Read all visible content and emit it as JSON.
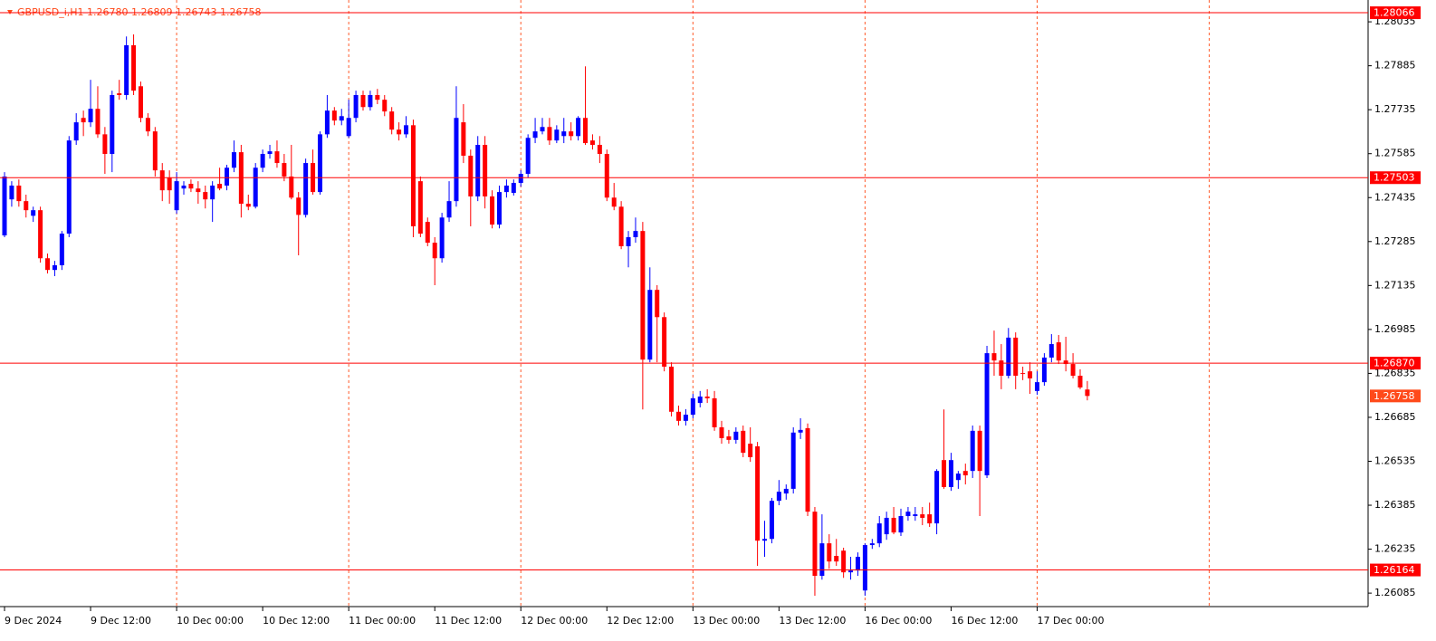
{
  "chart_data": {
    "type": "candlestick",
    "title": "GBPUSD_i,H1  1.26780 1.26809 1.26743 1.26758",
    "categories": [
      "9 Dec 2024",
      null,
      null,
      null,
      null,
      null,
      null,
      null,
      null,
      null,
      null,
      null,
      "9 Dec 12:00",
      null,
      null,
      null,
      null,
      null,
      null,
      null,
      null,
      null,
      null,
      null,
      "10 Dec 00:00",
      null,
      null,
      null,
      null,
      null,
      null,
      null,
      null,
      null,
      null,
      null,
      "10 Dec 12:00",
      null,
      null,
      null,
      null,
      null,
      null,
      null,
      null,
      null,
      null,
      null,
      "11 Dec 00:00",
      null,
      null,
      null,
      null,
      null,
      null,
      null,
      null,
      null,
      null,
      null,
      "11 Dec 12:00",
      null,
      null,
      null,
      null,
      null,
      null,
      null,
      null,
      null,
      null,
      null,
      "12 Dec 00:00",
      null,
      null,
      null,
      null,
      null,
      null,
      null,
      null,
      null,
      null,
      null,
      "12 Dec 12:00",
      null,
      null,
      null,
      null,
      null,
      null,
      null,
      null,
      null,
      null,
      null,
      "13 Dec 00:00",
      null,
      null,
      null,
      null,
      null,
      null,
      null,
      null,
      null,
      null,
      null,
      "13 Dec 12:00",
      null,
      null,
      null,
      null,
      null,
      null,
      null,
      null,
      null,
      null,
      null,
      "16 Dec 00:00",
      null,
      null,
      null,
      null,
      null,
      null,
      null,
      null,
      null,
      null,
      null,
      "16 Dec 12:00",
      null,
      null,
      null,
      null,
      null,
      null,
      null,
      null,
      null,
      null,
      null,
      "17 Dec 00:00",
      null,
      null,
      null,
      null,
      null,
      null,
      null
    ],
    "open": [
      1.27306,
      1.27429,
      1.27476,
      1.27423,
      1.27373,
      1.27392,
      1.27228,
      1.27188,
      1.27204,
      1.27312,
      1.2763,
      1.27707,
      1.27692,
      1.27738,
      1.27651,
      1.27584,
      1.27791,
      1.27785,
      1.27955,
      1.27815,
      1.27707,
      1.27661,
      1.27528,
      1.27503,
      1.27392,
      1.27466,
      1.27482,
      1.27466,
      1.27454,
      1.27429,
      1.27482,
      1.27476,
      1.27537,
      1.2759,
      1.27414,
      1.27404,
      1.27537,
      1.27584,
      1.27593,
      1.27553,
      1.27507,
      1.27435,
      1.27376,
      1.27553,
      1.27454,
      1.27651,
      1.27732,
      1.27698,
      1.27645,
      1.27707,
      1.27785,
      1.27744,
      1.27785,
      1.27769,
      1.27729,
      1.27667,
      1.27651,
      1.27682,
      1.27491,
      1.27352,
      1.27281,
      1.27228,
      1.27367,
      1.27423,
      1.27692,
      1.27578,
      1.27439,
      1.27615,
      1.27439,
      1.27343,
      1.27454,
      1.27451,
      1.27485,
      1.27516,
      1.27639,
      1.27661,
      1.27676,
      1.2763,
      1.27645,
      1.27661,
      1.27645,
      1.27707,
      1.2763,
      1.27615,
      1.27584,
      1.27435,
      1.27404,
      1.27269,
      1.273,
      1.27321,
      1.26882,
      1.2712,
      1.27027,
      1.26858,
      1.26704,
      1.26673,
      1.26694,
      1.26734,
      1.26756,
      1.2675,
      1.26651,
      1.2662,
      1.26608,
      1.26639,
      1.26595,
      1.26586,
      1.26264,
      1.2627,
      1.264,
      1.26425,
      1.26441,
      1.26633,
      1.26648,
      1.26363,
      1.26144,
      1.26255,
      1.26212,
      1.2623,
      1.26156,
      1.26162,
      1.26094,
      1.26249,
      1.26255,
      1.26286,
      1.26342,
      1.26292,
      1.26348,
      1.26348,
      1.26354,
      1.26354,
      1.26323,
      1.26539,
      1.26447,
      1.26471,
      1.26502,
      1.26502,
      1.26639,
      1.26487,
      1.26904,
      1.26879,
      1.26827,
      1.26957,
      1.26836,
      1.26842,
      1.26775,
      1.26805,
      1.26889,
      1.26941,
      1.26879,
      1.26867,
      1.26827,
      1.2678
    ],
    "high": [
      1.27522,
      1.27491,
      1.27497,
      1.27445,
      1.27404,
      1.27404,
      1.27244,
      1.27219,
      1.27321,
      1.27645,
      1.27723,
      1.27732,
      1.27837,
      1.27815,
      1.27676,
      1.278,
      1.27837,
      1.27985,
      1.27992,
      1.27831,
      1.27723,
      1.27676,
      1.27553,
      1.27528,
      1.27522,
      1.27491,
      1.27497,
      1.27491,
      1.27476,
      1.27491,
      1.27537,
      1.27547,
      1.2763,
      1.27615,
      1.27445,
      1.27553,
      1.27599,
      1.27615,
      1.2763,
      1.27584,
      1.27615,
      1.27454,
      1.27568,
      1.27599,
      1.27661,
      1.27785,
      1.27744,
      1.27738,
      1.27769,
      1.278,
      1.278,
      1.278,
      1.27806,
      1.27785,
      1.27744,
      1.27692,
      1.27713,
      1.27701,
      1.27507,
      1.27367,
      1.273,
      1.27383,
      1.27491,
      1.27815,
      1.27754,
      1.27599,
      1.27645,
      1.27645,
      1.2746,
      1.27476,
      1.27497,
      1.27497,
      1.27528,
      1.27651,
      1.27707,
      1.27707,
      1.27707,
      1.27682,
      1.27707,
      1.27692,
      1.27713,
      1.27883,
      1.27651,
      1.27645,
      1.27599,
      1.27485,
      1.27423,
      1.27321,
      1.27367,
      1.27352,
      1.27197,
      1.27136,
      1.27043,
      1.26873,
      1.26725,
      1.26713,
      1.26765,
      1.26775,
      1.26781,
      1.26775,
      1.26673,
      1.26642,
      1.26651,
      1.26657,
      1.26651,
      1.26601,
      1.26332,
      1.2641,
      1.26471,
      1.26456,
      1.26651,
      1.26682,
      1.26664,
      1.26379,
      1.26354,
      1.26286,
      1.2627,
      1.2624,
      1.26209,
      1.26224,
      1.26255,
      1.2627,
      1.26348,
      1.26363,
      1.26379,
      1.26373,
      1.26379,
      1.26379,
      1.26379,
      1.26394,
      1.26508,
      1.26712,
      1.26564,
      1.26502,
      1.26527,
      1.26657,
      1.26657,
      1.26929,
      1.26981,
      1.26935,
      1.2699,
      1.26975,
      1.26858,
      1.26873,
      1.26842,
      1.26904,
      1.26969,
      1.26966,
      1.2696,
      1.26904,
      1.26849,
      1.26809
    ],
    "low": [
      1.273,
      1.27404,
      1.27404,
      1.27367,
      1.27352,
      1.27213,
      1.27176,
      1.27167,
      1.27188,
      1.273,
      1.27615,
      1.27645,
      1.27676,
      1.27639,
      1.27516,
      1.27522,
      1.27769,
      1.27769,
      1.27785,
      1.27692,
      1.27645,
      1.27507,
      1.27423,
      1.27414,
      1.2738,
      1.27445,
      1.27454,
      1.27414,
      1.27398,
      1.27352,
      1.2746,
      1.2746,
      1.27522,
      1.27367,
      1.27392,
      1.27398,
      1.27522,
      1.27568,
      1.27537,
      1.27491,
      1.27429,
      1.27238,
      1.27367,
      1.27445,
      1.27445,
      1.27639,
      1.27682,
      1.27682,
      1.27639,
      1.27692,
      1.27732,
      1.27732,
      1.27754,
      1.27713,
      1.27651,
      1.2763,
      1.27639,
      1.273,
      1.273,
      1.27269,
      1.27136,
      1.27213,
      1.27352,
      1.27404,
      1.27553,
      1.27337,
      1.27423,
      1.27398,
      1.2733,
      1.2733,
      1.27435,
      1.27442,
      1.27472,
      1.27503,
      1.27621,
      1.27651,
      1.27615,
      1.27621,
      1.27621,
      1.2763,
      1.2763,
      1.27615,
      1.27599,
      1.27553,
      1.27423,
      1.27392,
      1.27259,
      1.27197,
      1.27281,
      1.26712,
      1.26873,
      1.26873,
      1.26842,
      1.26688,
      1.26657,
      1.26657,
      1.26682,
      1.26719,
      1.26734,
      1.26639,
      1.26595,
      1.26595,
      1.26595,
      1.26549,
      1.26533,
      1.26178,
      1.26209,
      1.26255,
      1.26385,
      1.26404,
      1.26425,
      1.26611,
      1.26348,
      1.26076,
      1.26131,
      1.26168,
      1.26178,
      1.26137,
      1.26131,
      1.26144,
      1.26076,
      1.26236,
      1.26242,
      1.26267,
      1.26286,
      1.2628,
      1.26332,
      1.26332,
      1.26317,
      1.26311,
      1.26286,
      1.26441,
      1.26434,
      1.26441,
      1.26456,
      1.26478,
      1.26348,
      1.26478,
      1.26827,
      1.26781,
      1.26818,
      1.26781,
      1.26812,
      1.26765,
      1.26762,
      1.26793,
      1.26873,
      1.26867,
      1.26842,
      1.26818,
      1.26781,
      1.26743
    ],
    "close": [
      1.27507,
      1.27476,
      1.27423,
      1.27392,
      1.27392,
      1.27228,
      1.27188,
      1.27204,
      1.27312,
      1.2763,
      1.27692,
      1.27692,
      1.27738,
      1.27651,
      1.27584,
      1.27785,
      1.27785,
      1.27955,
      1.278,
      1.27707,
      1.27661,
      1.27528,
      1.2746,
      1.2746,
      1.27491,
      1.27476,
      1.27466,
      1.27454,
      1.27429,
      1.27476,
      1.27466,
      1.27537,
      1.2759,
      1.27414,
      1.27404,
      1.27537,
      1.27584,
      1.27593,
      1.27553,
      1.27507,
      1.27435,
      1.27376,
      1.27553,
      1.27454,
      1.27651,
      1.27732,
      1.27698,
      1.27713,
      1.27707,
      1.27785,
      1.27744,
      1.27785,
      1.27769,
      1.27729,
      1.27667,
      1.27651,
      1.27682,
      1.27337,
      1.27312,
      1.27281,
      1.27228,
      1.27367,
      1.27423,
      1.27707,
      1.27578,
      1.27439,
      1.27615,
      1.27439,
      1.27343,
      1.27454,
      1.27476,
      1.27485,
      1.27516,
      1.27639,
      1.27661,
      1.27676,
      1.2763,
      1.27667,
      1.27661,
      1.27645,
      1.27707,
      1.27621,
      1.27615,
      1.27584,
      1.27435,
      1.27404,
      1.27269,
      1.273,
      1.27321,
      1.26882,
      1.2712,
      1.27027,
      1.26858,
      1.26704,
      1.26673,
      1.26694,
      1.2675,
      1.26756,
      1.2675,
      1.26651,
      1.26614,
      1.26608,
      1.26636,
      1.26564,
      1.26549,
      1.26264,
      1.2627,
      1.264,
      1.26431,
      1.26441,
      1.26633,
      1.26642,
      1.26363,
      1.26144,
      1.26255,
      1.26193,
      1.26193,
      1.26156,
      1.26162,
      1.26209,
      1.26249,
      1.26255,
      1.26323,
      1.26342,
      1.26292,
      1.26348,
      1.26363,
      1.26354,
      1.26342,
      1.26323,
      1.26502,
      1.26447,
      1.26539,
      1.26493,
      1.26487,
      1.26639,
      1.26502,
      1.26904,
      1.26879,
      1.26827,
      1.26957,
      1.26827,
      1.26833,
      1.26818,
      1.26805,
      1.26889,
      1.26935,
      1.26879,
      1.26867,
      1.26827,
      1.26787,
      1.26758
    ],
    "up_color": "#0000ff",
    "down_color": "#ff0000",
    "ylim": [
      1.26039,
      1.28094
    ],
    "yticks": [
      1.28035,
      1.27885,
      1.27735,
      1.27585,
      1.27435,
      1.27285,
      1.27135,
      1.26985,
      1.26835,
      1.26685,
      1.26535,
      1.26385,
      1.26235,
      1.26085
    ],
    "grid": true,
    "grid_color": "#ff5a2a",
    "levels": [
      {
        "value": 1.28066,
        "label": "1.28066"
      },
      {
        "value": 1.27503,
        "label": "1.27503"
      },
      {
        "value": 1.2687,
        "label": "1.26870"
      },
      {
        "value": 1.26164,
        "label": "1.26164"
      }
    ],
    "level_color": "#ff0000",
    "last_price_color": "#ff4a1a"
  }
}
